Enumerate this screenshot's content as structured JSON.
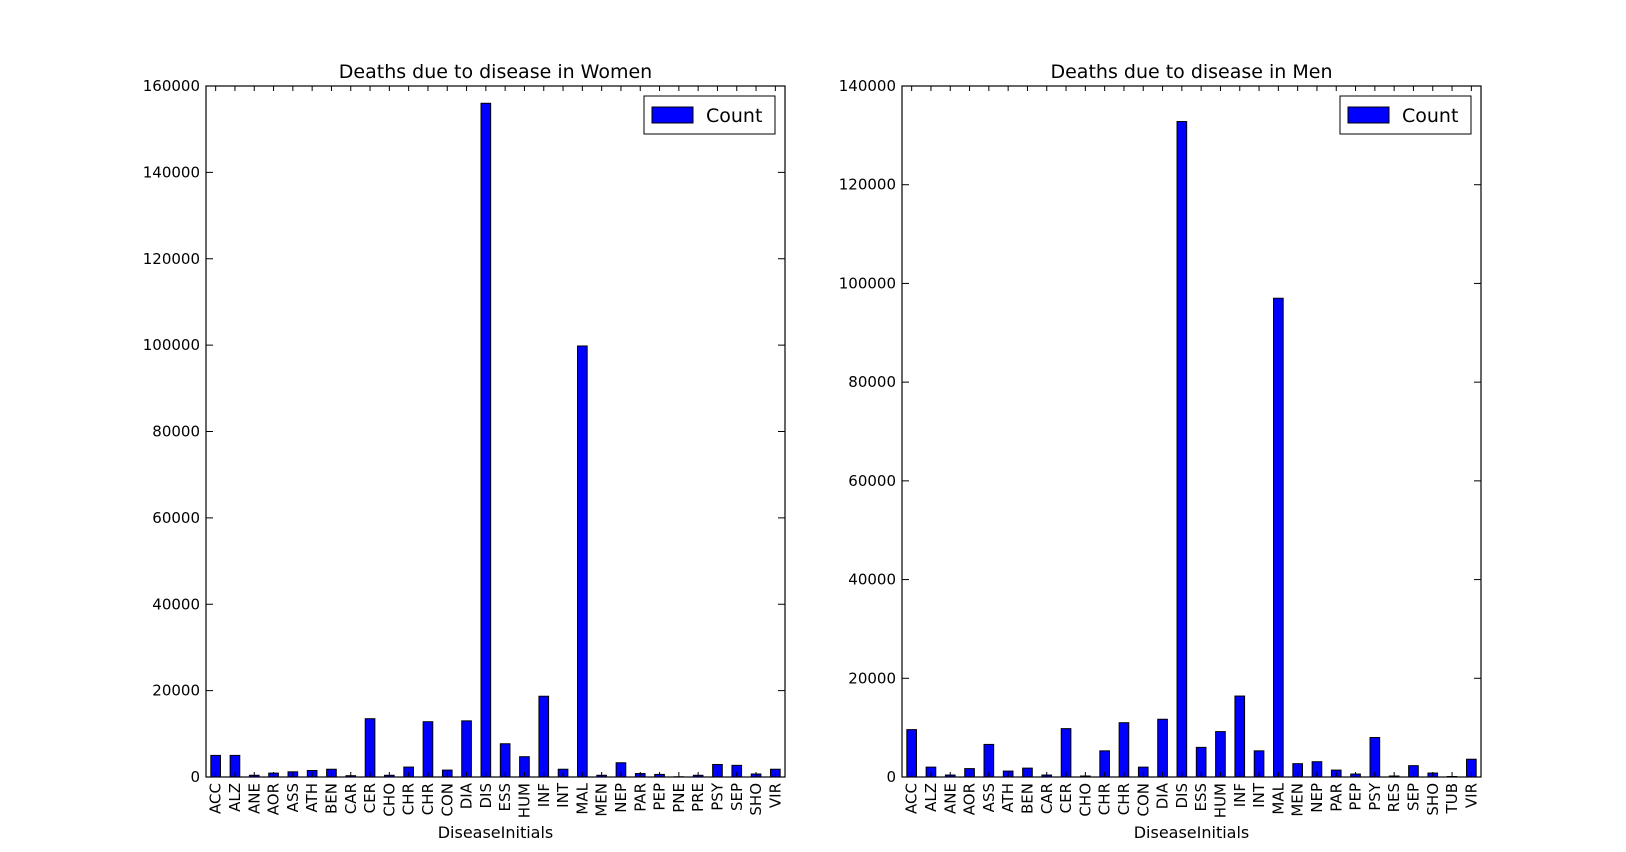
{
  "colors": {
    "bar": "#0000ff",
    "bar_edge": "#000000",
    "axes": "#000000",
    "background": "#ffffff"
  },
  "chart_data": [
    {
      "type": "bar",
      "title": "Deaths due to disease in Women",
      "xlabel": "DiseaseInitials",
      "ylabel": "",
      "ylim": [
        0,
        160000
      ],
      "yticks": [
        0,
        20000,
        40000,
        60000,
        80000,
        100000,
        120000,
        140000,
        160000
      ],
      "legend": {
        "placement": "top-right",
        "entries": [
          "Count"
        ]
      },
      "grid": false,
      "categories": [
        "ACC",
        "ALZ",
        "ANE",
        "AOR",
        "ASS",
        "ATH",
        "BEN",
        "CAR",
        "CER",
        "CHO",
        "CHR",
        "CHR",
        "CON",
        "DIA",
        "DIS",
        "ESS",
        "HUM",
        "INF",
        "INT",
        "MAL",
        "MEN",
        "NEP",
        "PAR",
        "PEP",
        "PNE",
        "PRE",
        "PSY",
        "SEP",
        "SHO",
        "VIR"
      ],
      "series": [
        {
          "name": "Count",
          "values": [
            5000,
            5000,
            400,
            900,
            1200,
            1500,
            1800,
            300,
            13500,
            400,
            2300,
            12800,
            1600,
            13000,
            156000,
            7700,
            4700,
            18700,
            1800,
            99800,
            400,
            3300,
            800,
            600,
            50,
            400,
            2900,
            2700,
            700,
            1800
          ]
        }
      ]
    },
    {
      "type": "bar",
      "title": "Deaths due to disease in Men",
      "xlabel": "DiseaseInitials",
      "ylabel": "",
      "ylim": [
        0,
        140000
      ],
      "yticks": [
        0,
        20000,
        40000,
        60000,
        80000,
        100000,
        120000,
        140000
      ],
      "legend": {
        "placement": "top-right",
        "entries": [
          "Count"
        ]
      },
      "grid": false,
      "categories": [
        "ACC",
        "ALZ",
        "ANE",
        "AOR",
        "ASS",
        "ATH",
        "BEN",
        "CAR",
        "CER",
        "CHO",
        "CHR",
        "CHR",
        "CON",
        "DIA",
        "DIS",
        "ESS",
        "HUM",
        "INF",
        "INT",
        "MAL",
        "MEN",
        "NEP",
        "PAR",
        "PEP",
        "PSY",
        "RES",
        "SEP",
        "SHO",
        "TUB",
        "VIR"
      ],
      "series": [
        {
          "name": "Count",
          "values": [
            9600,
            2000,
            400,
            1700,
            6600,
            1200,
            1800,
            400,
            9800,
            200,
            5300,
            11000,
            2000,
            11700,
            132800,
            6000,
            9200,
            16400,
            5300,
            97000,
            2700,
            3100,
            1400,
            600,
            8000,
            200,
            2300,
            800,
            100,
            3600
          ]
        }
      ]
    }
  ]
}
